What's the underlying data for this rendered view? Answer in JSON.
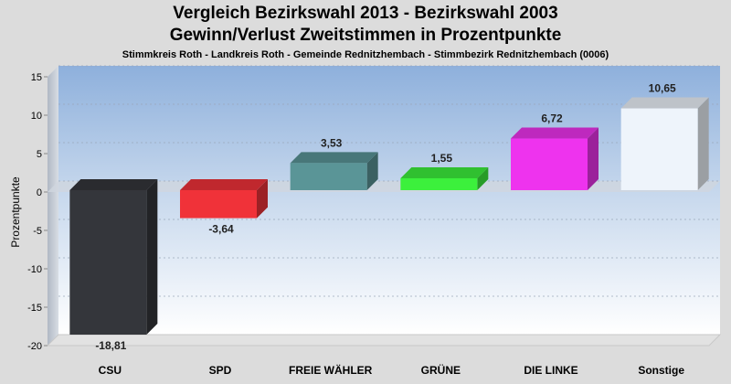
{
  "title": "Vergleich Bezirkswahl 2013 - Bezirkswahl 2003",
  "subtitle": "Gewinn/Verlust Zweitstimmen in Prozentpunkte",
  "caption": "Stimmkreis Roth - Landkreis Roth - Gemeinde Rednitzhembach - Stimmbezirk Rednitzhembach (0006)",
  "chart_data": {
    "type": "bar",
    "title": "Vergleich Bezirkswahl 2013 - Bezirkswahl 2003",
    "subtitle": "Gewinn/Verlust Zweitstimmen in Prozentpunkte",
    "xlabel": "",
    "ylabel": "Prozentpunkte",
    "ylim": [
      -20,
      15
    ],
    "yticks": [
      15,
      10,
      5,
      0,
      -5,
      -10,
      -15,
      -20
    ],
    "grid": true,
    "categories": [
      "CSU",
      "SPD",
      "FREIE WÄHLER",
      "GRÜNE",
      "DIE LINKE",
      "Sonstige"
    ],
    "values": [
      -18.81,
      -3.64,
      3.53,
      1.55,
      6.72,
      10.65
    ],
    "labels": [
      "-18,81",
      "-3,64",
      "3,53",
      "1,55",
      "6,72",
      "10,65"
    ],
    "colors": [
      "#34363b",
      "#f03239",
      "#5a9597",
      "#3cf03c",
      "#ee33ee",
      "#eef4fb"
    ]
  }
}
